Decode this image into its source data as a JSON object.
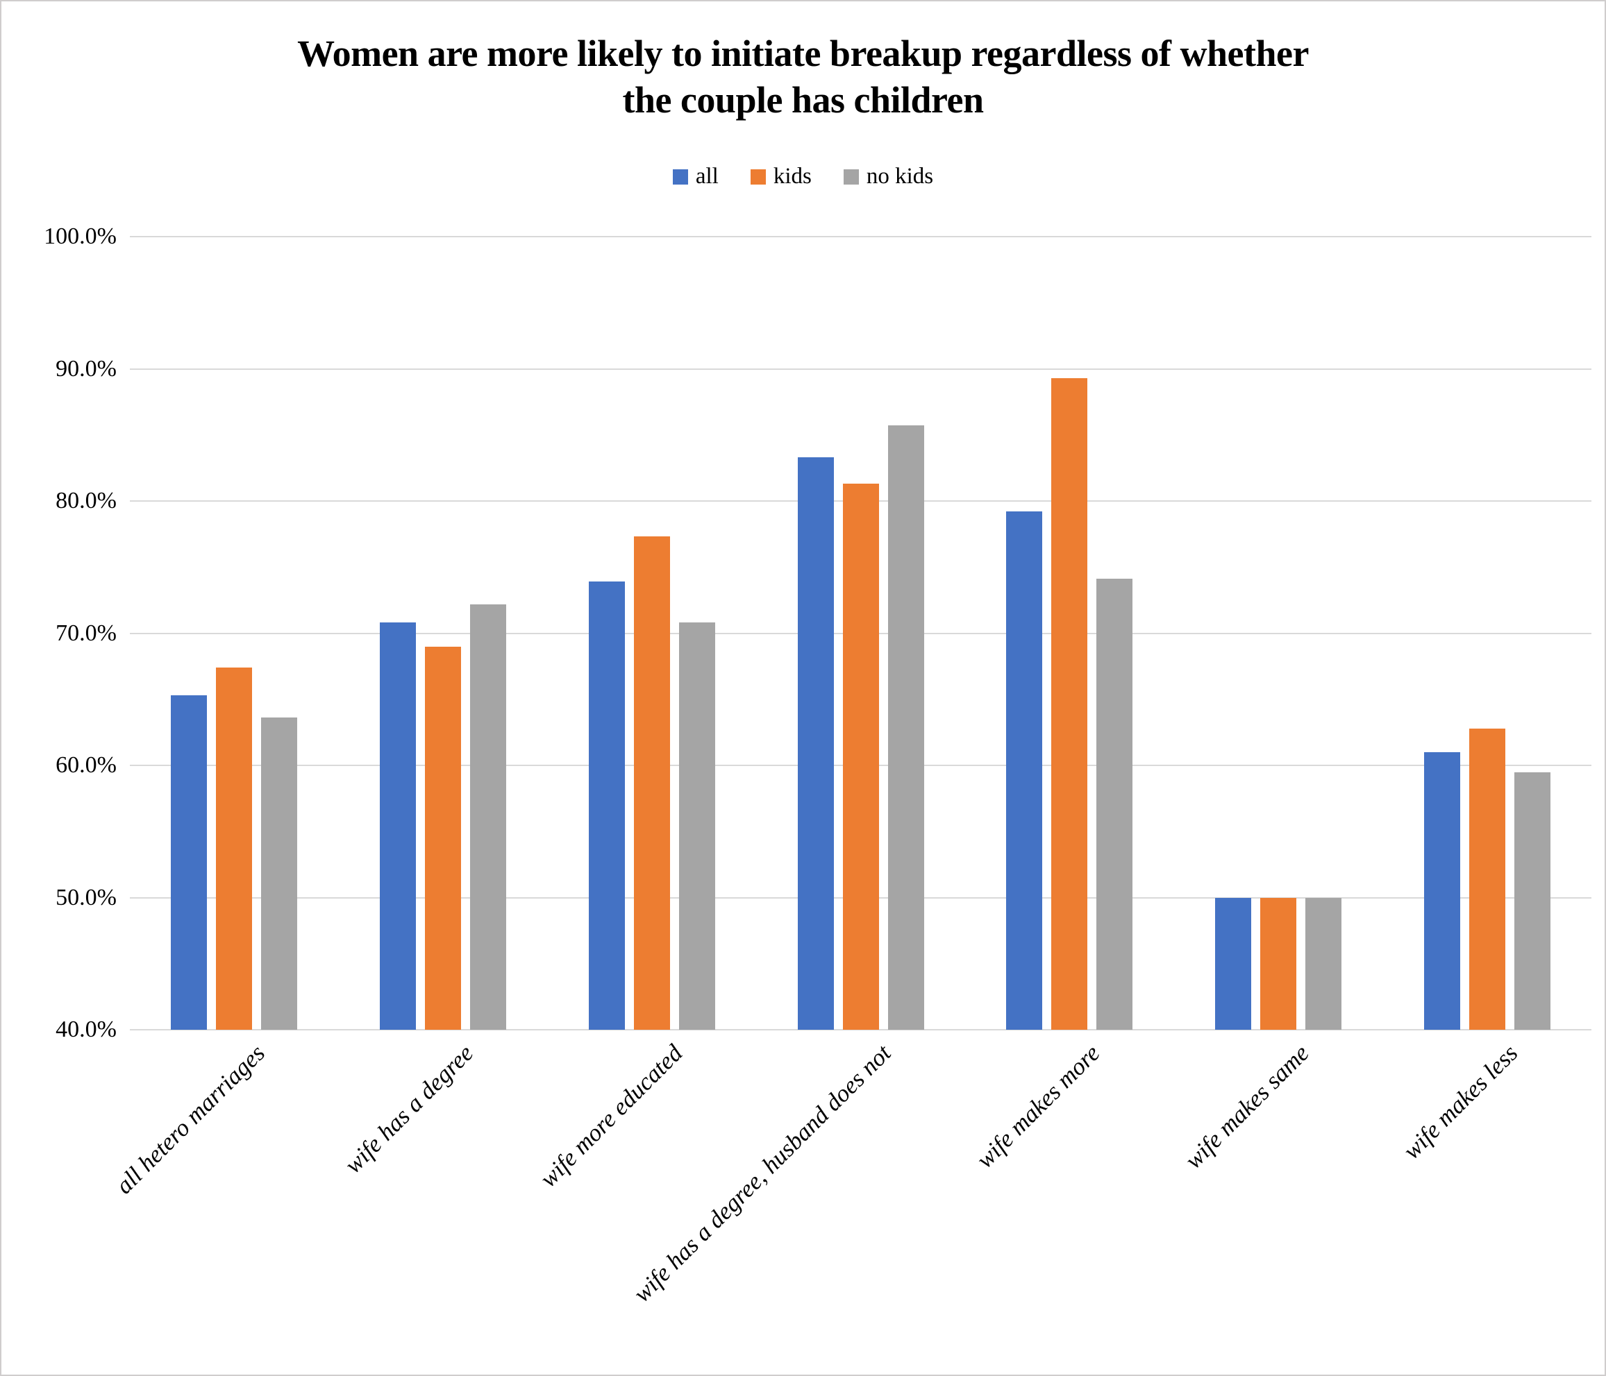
{
  "title": {
    "line1": "Women are more likely to initiate breakup regardless of whether",
    "line2": "the couple has children"
  },
  "chart_data": {
    "type": "bar",
    "title": "Women are more likely to initiate breakup regardless of whether the couple has children",
    "categories": [
      "all hetero marriages",
      "wife has a degree",
      "wife more educated",
      "wife has a degree, husband does not",
      "wife makes more",
      "wife makes same",
      "wife makes less"
    ],
    "series": [
      {
        "name": "all",
        "color": "#4472C4",
        "values": [
          65.3,
          70.8,
          73.9,
          83.3,
          79.2,
          50.0,
          61.0
        ]
      },
      {
        "name": "kids",
        "color": "#ED7D31",
        "values": [
          67.4,
          69.0,
          77.3,
          81.3,
          89.3,
          50.0,
          62.8
        ]
      },
      {
        "name": "no kids",
        "color": "#A5A5A5",
        "values": [
          63.6,
          72.2,
          70.8,
          85.7,
          74.1,
          50.0,
          59.5
        ]
      }
    ],
    "ylim": [
      40,
      100
    ],
    "y_tick_step": 10,
    "y_tick_labels": [
      "100.0%",
      "90.0%",
      "80.0%",
      "70.0%",
      "60.0%",
      "50.0%",
      "40.0%"
    ],
    "xlabel": "",
    "ylabel": "",
    "grid": true,
    "legend_position": "top",
    "value_format": "percent"
  },
  "style": {
    "gridline_color": "#D9D9D9",
    "frame_border_color": "#CFCDCD",
    "text_color": "#000000",
    "background_color": "#FFFFFF"
  }
}
